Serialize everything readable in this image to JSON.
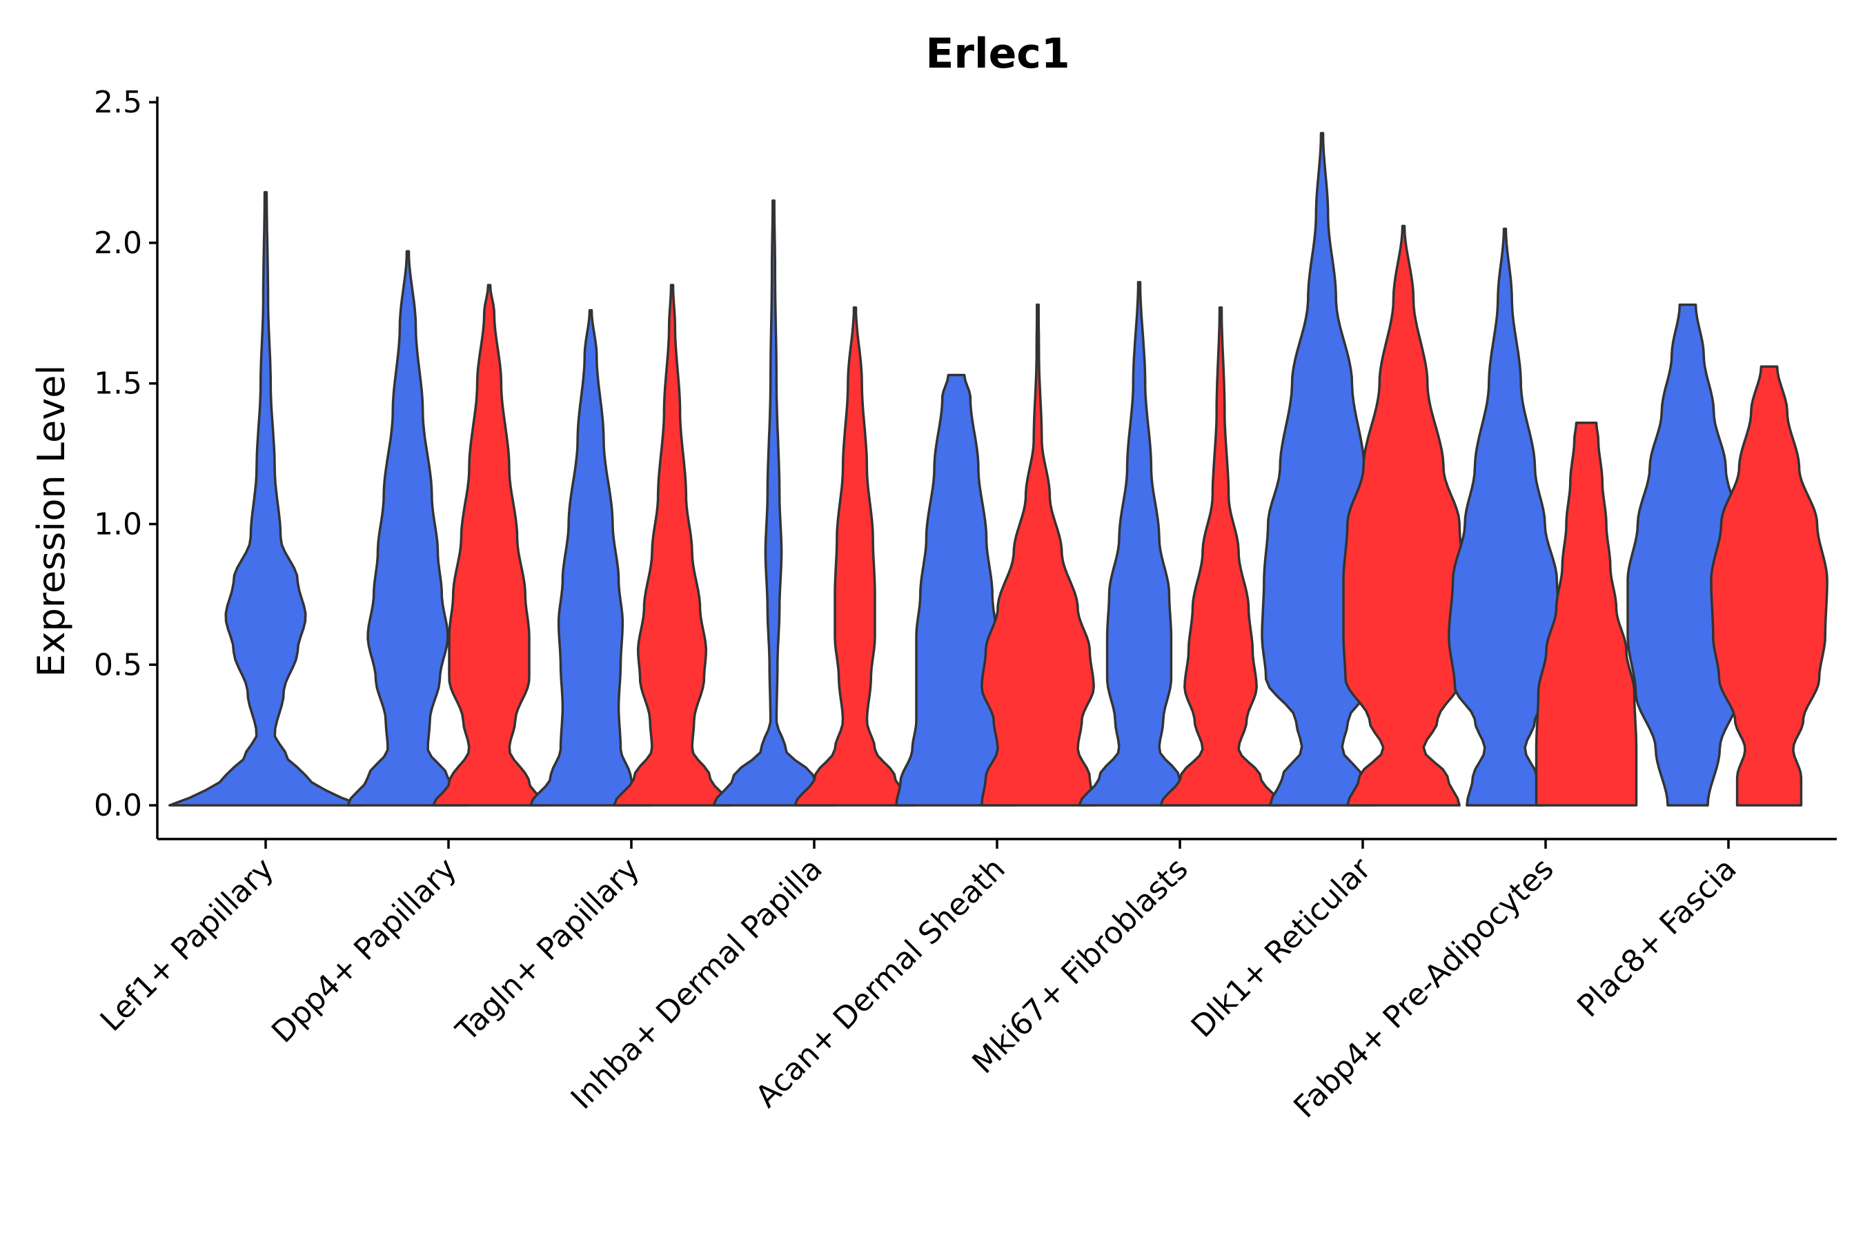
{
  "chart_data": {
    "type": "violin",
    "title": "Erlec1",
    "xlabel": "",
    "ylabel": "Expression Level",
    "ylim": [
      -0.12,
      2.52
    ],
    "yticks": [
      0.0,
      0.5,
      1.0,
      1.5,
      2.0,
      2.5
    ],
    "ytick_labels": [
      "0.0",
      "0.5",
      "1.0",
      "1.5",
      "2.0",
      "2.5"
    ],
    "categories": [
      "Lef1+ Papillary",
      "Dpp4+ Papillary",
      "Tagln+ Papillary",
      "Inhba+ Dermal Papilla",
      "Acan+ Dermal Sheath",
      "Mki67+ Fibroblasts",
      "Dlk1+ Reticular",
      "Fabp4+ Pre-Adipocytes",
      "Plac8+ Fascia"
    ],
    "series": [
      {
        "name": "group1",
        "color": "#4470eb"
      },
      {
        "name": "group2",
        "color": "#ff3333"
      }
    ],
    "violins": [
      {
        "category": 0,
        "series": 0,
        "ymax": 2.18,
        "profile": [
          [
            0.0,
            0.48
          ],
          [
            0.05,
            0.3
          ],
          [
            0.1,
            0.2
          ],
          [
            0.18,
            0.1
          ],
          [
            0.25,
            0.045
          ],
          [
            0.4,
            0.09
          ],
          [
            0.55,
            0.16
          ],
          [
            0.67,
            0.2
          ],
          [
            0.8,
            0.16
          ],
          [
            0.95,
            0.075
          ],
          [
            1.2,
            0.045
          ],
          [
            1.5,
            0.025
          ],
          [
            1.8,
            0.012
          ],
          [
            2.18,
            0.005
          ]
        ]
      },
      {
        "category": 1,
        "series": 0,
        "ymax": 1.97,
        "profile": [
          [
            0.0,
            0.3
          ],
          [
            0.1,
            0.2
          ],
          [
            0.2,
            0.1
          ],
          [
            0.3,
            0.11
          ],
          [
            0.45,
            0.16
          ],
          [
            0.6,
            0.2
          ],
          [
            0.75,
            0.17
          ],
          [
            0.9,
            0.15
          ],
          [
            1.1,
            0.12
          ],
          [
            1.4,
            0.075
          ],
          [
            1.7,
            0.04
          ],
          [
            1.97,
            0.005
          ]
        ]
      },
      {
        "category": 1,
        "series": 1,
        "ymax": 1.85,
        "profile": [
          [
            0.0,
            0.28
          ],
          [
            0.08,
            0.2
          ],
          [
            0.2,
            0.1
          ],
          [
            0.3,
            0.13
          ],
          [
            0.45,
            0.2
          ],
          [
            0.6,
            0.2
          ],
          [
            0.75,
            0.18
          ],
          [
            0.95,
            0.14
          ],
          [
            1.2,
            0.1
          ],
          [
            1.5,
            0.06
          ],
          [
            1.75,
            0.025
          ],
          [
            1.85,
            0.005
          ]
        ]
      },
      {
        "category": 2,
        "series": 0,
        "ymax": 1.76,
        "profile": [
          [
            0.0,
            0.3
          ],
          [
            0.1,
            0.2
          ],
          [
            0.2,
            0.15
          ],
          [
            0.35,
            0.14
          ],
          [
            0.5,
            0.15
          ],
          [
            0.65,
            0.16
          ],
          [
            0.8,
            0.14
          ],
          [
            1.0,
            0.11
          ],
          [
            1.3,
            0.065
          ],
          [
            1.6,
            0.03
          ],
          [
            1.76,
            0.005
          ]
        ]
      },
      {
        "category": 2,
        "series": 1,
        "ymax": 1.85,
        "profile": [
          [
            0.0,
            0.29
          ],
          [
            0.1,
            0.19
          ],
          [
            0.2,
            0.1
          ],
          [
            0.3,
            0.11
          ],
          [
            0.45,
            0.16
          ],
          [
            0.55,
            0.17
          ],
          [
            0.7,
            0.14
          ],
          [
            0.9,
            0.1
          ],
          [
            1.1,
            0.07
          ],
          [
            1.4,
            0.04
          ],
          [
            1.7,
            0.015
          ],
          [
            1.85,
            0.005
          ]
        ]
      },
      {
        "category": 3,
        "series": 0,
        "ymax": 2.15,
        "profile": [
          [
            0.0,
            0.3
          ],
          [
            0.1,
            0.2
          ],
          [
            0.2,
            0.06
          ],
          [
            0.3,
            0.015
          ],
          [
            0.5,
            0.02
          ],
          [
            0.7,
            0.03
          ],
          [
            0.9,
            0.04
          ],
          [
            1.1,
            0.03
          ],
          [
            1.5,
            0.015
          ],
          [
            1.9,
            0.008
          ],
          [
            2.15,
            0.004
          ]
        ]
      },
      {
        "category": 3,
        "series": 1,
        "ymax": 1.77,
        "profile": [
          [
            0.0,
            0.3
          ],
          [
            0.1,
            0.2
          ],
          [
            0.2,
            0.1
          ],
          [
            0.3,
            0.06
          ],
          [
            0.45,
            0.08
          ],
          [
            0.6,
            0.1
          ],
          [
            0.75,
            0.1
          ],
          [
            0.95,
            0.09
          ],
          [
            1.2,
            0.06
          ],
          [
            1.5,
            0.035
          ],
          [
            1.77,
            0.005
          ]
        ]
      },
      {
        "category": 4,
        "series": 0,
        "ymax": 1.53,
        "profile": [
          [
            0.0,
            0.3
          ],
          [
            0.08,
            0.28
          ],
          [
            0.2,
            0.22
          ],
          [
            0.3,
            0.2
          ],
          [
            0.45,
            0.2
          ],
          [
            0.6,
            0.2
          ],
          [
            0.75,
            0.18
          ],
          [
            0.95,
            0.15
          ],
          [
            1.2,
            0.11
          ],
          [
            1.45,
            0.07
          ],
          [
            1.53,
            0.04
          ]
        ]
      },
      {
        "category": 4,
        "series": 1,
        "ymax": 1.78,
        "profile": [
          [
            0.0,
            0.28
          ],
          [
            0.1,
            0.26
          ],
          [
            0.2,
            0.2
          ],
          [
            0.3,
            0.22
          ],
          [
            0.42,
            0.28
          ],
          [
            0.55,
            0.26
          ],
          [
            0.7,
            0.2
          ],
          [
            0.9,
            0.12
          ],
          [
            1.1,
            0.06
          ],
          [
            1.3,
            0.02
          ],
          [
            1.6,
            0.006
          ],
          [
            1.78,
            0.004
          ]
        ]
      },
      {
        "category": 5,
        "series": 0,
        "ymax": 1.86,
        "profile": [
          [
            0.0,
            0.3
          ],
          [
            0.1,
            0.2
          ],
          [
            0.2,
            0.1
          ],
          [
            0.3,
            0.12
          ],
          [
            0.45,
            0.16
          ],
          [
            0.6,
            0.16
          ],
          [
            0.75,
            0.15
          ],
          [
            0.95,
            0.1
          ],
          [
            1.2,
            0.06
          ],
          [
            1.5,
            0.03
          ],
          [
            1.86,
            0.005
          ]
        ]
      },
      {
        "category": 5,
        "series": 1,
        "ymax": 1.77,
        "profile": [
          [
            0.0,
            0.3
          ],
          [
            0.1,
            0.2
          ],
          [
            0.2,
            0.09
          ],
          [
            0.3,
            0.13
          ],
          [
            0.42,
            0.18
          ],
          [
            0.55,
            0.16
          ],
          [
            0.7,
            0.14
          ],
          [
            0.9,
            0.09
          ],
          [
            1.1,
            0.04
          ],
          [
            1.4,
            0.02
          ],
          [
            1.77,
            0.005
          ]
        ]
      },
      {
        "category": 6,
        "series": 0,
        "ymax": 2.39,
        "profile": [
          [
            0.0,
            0.26
          ],
          [
            0.1,
            0.2
          ],
          [
            0.2,
            0.1
          ],
          [
            0.3,
            0.13
          ],
          [
            0.45,
            0.28
          ],
          [
            0.6,
            0.3
          ],
          [
            0.8,
            0.29
          ],
          [
            1.0,
            0.27
          ],
          [
            1.2,
            0.21
          ],
          [
            1.5,
            0.15
          ],
          [
            1.8,
            0.07
          ],
          [
            2.1,
            0.03
          ],
          [
            2.39,
            0.005
          ]
        ]
      },
      {
        "category": 6,
        "series": 1,
        "ymax": 2.06,
        "profile": [
          [
            0.0,
            0.28
          ],
          [
            0.1,
            0.22
          ],
          [
            0.2,
            0.1
          ],
          [
            0.3,
            0.17
          ],
          [
            0.45,
            0.29
          ],
          [
            0.6,
            0.3
          ],
          [
            0.8,
            0.3
          ],
          [
            1.0,
            0.28
          ],
          [
            1.2,
            0.2
          ],
          [
            1.5,
            0.12
          ],
          [
            1.8,
            0.05
          ],
          [
            2.06,
            0.005
          ]
        ]
      },
      {
        "category": 7,
        "series": 0,
        "ymax": 2.05,
        "profile": [
          [
            0.0,
            0.19
          ],
          [
            0.1,
            0.16
          ],
          [
            0.2,
            0.1
          ],
          [
            0.3,
            0.15
          ],
          [
            0.42,
            0.25
          ],
          [
            0.6,
            0.28
          ],
          [
            0.8,
            0.26
          ],
          [
            1.0,
            0.2
          ],
          [
            1.2,
            0.15
          ],
          [
            1.5,
            0.08
          ],
          [
            1.8,
            0.035
          ],
          [
            2.05,
            0.005
          ]
        ]
      },
      {
        "category": 7,
        "series": 1,
        "ymax": 1.36,
        "profile": [
          [
            0.0,
            0.25
          ],
          [
            0.2,
            0.25
          ],
          [
            0.4,
            0.24
          ],
          [
            0.55,
            0.2
          ],
          [
            0.7,
            0.15
          ],
          [
            0.85,
            0.12
          ],
          [
            1.0,
            0.1
          ],
          [
            1.15,
            0.08
          ],
          [
            1.3,
            0.06
          ],
          [
            1.36,
            0.05
          ]
        ]
      },
      {
        "category": 8,
        "series": 0,
        "ymax": 1.78,
        "profile": [
          [
            0.0,
            0.1
          ],
          [
            0.2,
            0.16
          ],
          [
            0.4,
            0.26
          ],
          [
            0.6,
            0.3
          ],
          [
            0.8,
            0.3
          ],
          [
            1.0,
            0.25
          ],
          [
            1.2,
            0.19
          ],
          [
            1.4,
            0.13
          ],
          [
            1.6,
            0.08
          ],
          [
            1.78,
            0.04
          ]
        ]
      },
      {
        "category": 8,
        "series": 1,
        "ymax": 1.56,
        "profile": [
          [
            0.0,
            0.16
          ],
          [
            0.1,
            0.16
          ],
          [
            0.2,
            0.12
          ],
          [
            0.3,
            0.17
          ],
          [
            0.45,
            0.25
          ],
          [
            0.6,
            0.28
          ],
          [
            0.8,
            0.29
          ],
          [
            1.0,
            0.24
          ],
          [
            1.2,
            0.15
          ],
          [
            1.4,
            0.09
          ],
          [
            1.56,
            0.04
          ]
        ]
      }
    ]
  }
}
